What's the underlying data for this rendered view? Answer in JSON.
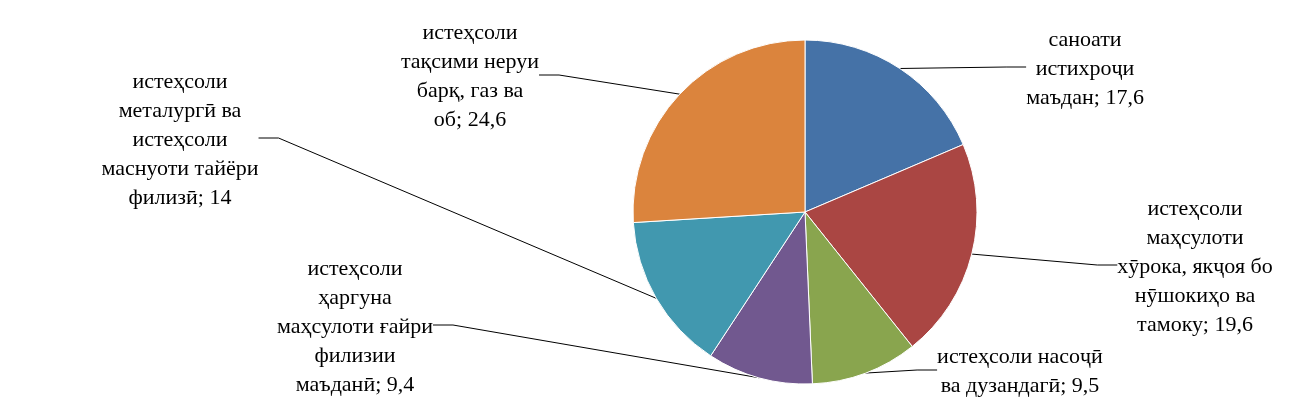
{
  "chart_data": {
    "type": "pie",
    "categories": [
      "саноати истихроҷи маъдан",
      "истеҳсоли маҳсулоти хӯрока, якҷоя бо нӯшокиҳо ва тамоку",
      "истеҳсоли насоҷӣ ва дузандагӣ",
      "истеҳсоли ҳаргуна маҳсулоти ғайри филизии маъданӣ",
      "истеҳсоли металургӣ ва истеҳсоли маснуоти тайёри филизӣ",
      "истеҳсоли тақсими неруи барқ, газ ва об"
    ],
    "values": [
      17.6,
      19.6,
      9.5,
      9.4,
      14,
      24.6
    ],
    "value_labels": [
      "17,6",
      "19,6",
      "9,5",
      "9,4",
      "14",
      "24,6"
    ],
    "colors": [
      "#4572a7",
      "#aa4643",
      "#89a54e",
      "#71588f",
      "#4198af",
      "#db843d"
    ],
    "legend": false
  }
}
